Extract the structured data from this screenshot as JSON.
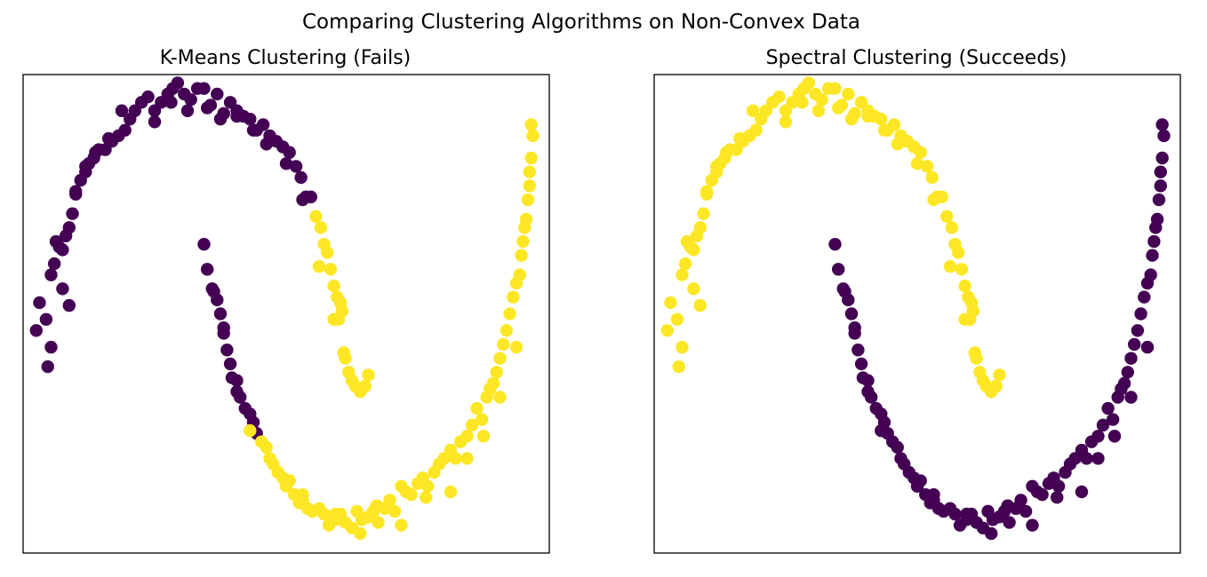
{
  "figure": {
    "suptitle": "Comparing Clustering Algorithms on Non-Convex Data"
  },
  "colors": {
    "cluster_0": "#440154",
    "cluster_1": "#fde725"
  },
  "chart_data": [
    {
      "type": "scatter",
      "title": "K-Means Clustering (Fails)",
      "xlabel": "",
      "ylabel": "",
      "xlim": [
        -1.1,
        2.1
      ],
      "ylim": [
        -0.62,
        1.1
      ],
      "grid": false,
      "ticks": false,
      "x_upper": [
        -1.02,
        -1.0,
        -0.96,
        -0.93,
        -0.95,
        -0.93,
        -0.91,
        -0.88,
        -0.86,
        -0.84,
        -0.82,
        -0.8,
        -0.78,
        -0.75,
        -0.72,
        -0.7,
        -0.67,
        -0.64,
        -0.6,
        -0.56,
        -0.52,
        -0.48,
        -0.45,
        -0.42,
        -0.38,
        -0.34,
        -0.3,
        -0.26,
        -0.22,
        -0.19,
        -0.16,
        -0.12,
        -0.08,
        -0.04,
        0.0,
        0.04,
        0.08,
        0.12,
        0.16,
        0.2,
        0.24,
        0.28,
        0.32,
        0.36,
        0.4,
        0.44,
        0.48,
        0.52,
        0.56,
        0.59,
        0.62,
        0.65,
        0.68,
        0.71,
        0.73,
        0.75,
        0.77,
        0.79,
        0.81,
        0.82,
        0.83,
        0.84,
        0.85,
        0.86,
        0.88,
        0.9,
        0.92,
        0.95,
        0.98,
        1.0,
        -0.9,
        -0.86,
        -0.82,
        -0.78,
        -0.72,
        -0.66,
        -0.58,
        -0.5,
        -0.3,
        -0.2,
        -0.1,
        0.02,
        0.1,
        0.2,
        0.3,
        0.38,
        0.5,
        0.6,
        0.7,
        0.79
      ],
      "y_upper": [
        0.18,
        0.28,
        0.22,
        0.12,
        0.05,
        0.38,
        0.42,
        0.48,
        0.47,
        0.52,
        0.55,
        0.6,
        0.67,
        0.72,
        0.75,
        0.78,
        0.8,
        0.83,
        0.83,
        0.86,
        0.88,
        0.9,
        0.94,
        0.97,
        1.0,
        1.02,
        0.97,
        1.0,
        1.03,
        1.05,
        1.07,
        1.03,
        1.01,
        1.05,
        1.05,
        0.99,
        1.03,
        0.96,
        1.0,
        0.97,
        0.95,
        0.94,
        0.9,
        0.92,
        0.88,
        0.86,
        0.84,
        0.82,
        0.77,
        0.73,
        0.66,
        0.66,
        0.59,
        0.55,
        0.49,
        0.46,
        0.4,
        0.34,
        0.3,
        0.22,
        0.28,
        0.25,
        0.1,
        0.08,
        0.03,
        0.0,
        -0.02,
        -0.04,
        -0.02,
        0.02,
        0.5,
        0.33,
        0.27,
        0.68,
        0.77,
        0.82,
        0.87,
        0.97,
        0.93,
        1.0,
        0.97,
        0.98,
        0.94,
        0.95,
        0.9,
        0.85,
        0.78,
        0.65,
        0.41,
        0.22
      ],
      "x_lower": [
        0.0,
        0.02,
        0.05,
        0.08,
        0.1,
        0.12,
        0.14,
        0.16,
        0.17,
        0.2,
        0.22,
        0.25,
        0.28,
        0.3,
        0.32,
        0.35,
        0.38,
        0.4,
        0.42,
        0.45,
        0.48,
        0.5,
        0.52,
        0.55,
        0.58,
        0.6,
        0.63,
        0.66,
        0.7,
        0.73,
        0.76,
        0.8,
        0.83,
        0.86,
        0.9,
        0.93,
        0.96,
        1.0,
        1.03,
        1.06,
        1.1,
        1.13,
        1.16,
        1.2,
        1.23,
        1.26,
        1.3,
        1.33,
        1.36,
        1.4,
        1.43,
        1.46,
        1.5,
        1.53,
        1.56,
        1.6,
        1.63,
        1.66,
        1.69,
        1.72,
        1.74,
        1.76,
        1.78,
        1.8,
        1.82,
        1.84,
        1.86,
        1.88,
        1.9,
        1.92,
        1.93,
        1.94,
        1.95,
        1.96,
        1.97,
        1.98,
        1.98,
        1.99,
        2.0,
        1.99,
        0.06,
        0.12,
        0.2,
        0.28,
        0.6,
        0.8,
        0.95,
        1.05,
        1.2,
        1.35,
        1.5,
        1.6,
        1.7,
        1.8,
        1.9
      ],
      "y_lower": [
        0.49,
        0.4,
        0.33,
        0.29,
        0.24,
        0.17,
        0.11,
        0.06,
        0.01,
        0.0,
        -0.06,
        -0.1,
        -0.12,
        -0.15,
        -0.19,
        -0.22,
        -0.24,
        -0.28,
        -0.3,
        -0.33,
        -0.35,
        -0.38,
        -0.36,
        -0.41,
        -0.44,
        -0.43,
        -0.46,
        -0.47,
        -0.46,
        -0.48,
        -0.52,
        -0.5,
        -0.48,
        -0.51,
        -0.53,
        -0.47,
        -0.5,
        -0.49,
        -0.47,
        -0.51,
        -0.46,
        -0.43,
        -0.47,
        -0.38,
        -0.4,
        -0.41,
        -0.37,
        -0.35,
        -0.38,
        -0.33,
        -0.3,
        -0.28,
        -0.25,
        -0.28,
        -0.22,
        -0.2,
        -0.16,
        -0.1,
        -0.14,
        -0.06,
        -0.03,
        -0.01,
        0.03,
        0.08,
        0.13,
        0.18,
        0.24,
        0.3,
        0.35,
        0.38,
        0.45,
        0.5,
        0.55,
        0.58,
        0.65,
        0.7,
        0.75,
        0.8,
        0.88,
        0.92,
        0.32,
        0.19,
        -0.04,
        -0.18,
        -0.41,
        -0.48,
        -0.55,
        -0.45,
        -0.52,
        -0.42,
        -0.4,
        -0.28,
        -0.2,
        -0.06,
        0.12
      ],
      "series": [
        {
          "name": "",
          "x": [
            -1.02,
            -1.0,
            -0.96,
            -0.93,
            -0.95,
            -0.93,
            -0.91,
            -0.88,
            -0.86,
            -0.84,
            -0.82,
            -0.8,
            -0.78,
            -0.75,
            -0.72,
            -0.7,
            -0.67,
            -0.64,
            -0.6,
            -0.56,
            -0.52,
            -0.48,
            -0.45,
            -0.42,
            -0.38,
            -0.34,
            -0.3,
            -0.26,
            -0.22,
            -0.19,
            -0.16,
            -0.12,
            -0.08,
            -0.04,
            0.0,
            0.04,
            0.08,
            0.12,
            0.16,
            0.2,
            0.24,
            0.28,
            0.32,
            0.36,
            0.4,
            0.44,
            0.48,
            0.52,
            0.56,
            0.59,
            0.62,
            0.65,
            -0.9,
            -0.86,
            -0.82,
            -0.78,
            -0.72,
            -0.66,
            -0.58,
            -0.5,
            -0.3,
            -0.2,
            -0.1,
            0.02,
            0.1,
            0.2,
            0.3,
            0.38,
            0.5,
            0.6,
            0.0,
            0.02,
            0.05,
            0.08,
            0.1,
            0.12,
            0.14,
            0.16,
            0.17,
            0.2,
            0.22,
            0.25,
            0.28,
            0.3,
            0.32,
            0.06,
            0.12,
            0.2
          ],
          "y": [
            0.18,
            0.28,
            0.22,
            0.12,
            0.05,
            0.38,
            0.42,
            0.48,
            0.47,
            0.52,
            0.55,
            0.6,
            0.67,
            0.72,
            0.75,
            0.78,
            0.8,
            0.83,
            0.83,
            0.86,
            0.88,
            0.9,
            0.94,
            0.97,
            1.0,
            1.02,
            0.97,
            1.0,
            1.03,
            1.05,
            1.07,
            1.03,
            1.01,
            1.05,
            1.05,
            0.99,
            1.03,
            0.96,
            1.0,
            0.97,
            0.95,
            0.94,
            0.9,
            0.92,
            0.88,
            0.86,
            0.84,
            0.82,
            0.77,
            0.73,
            0.66,
            0.66,
            0.5,
            0.33,
            0.27,
            0.68,
            0.77,
            0.82,
            0.87,
            0.97,
            0.93,
            1.0,
            0.97,
            0.98,
            0.94,
            0.95,
            0.9,
            0.85,
            0.78,
            0.65,
            0.49,
            0.4,
            0.33,
            0.29,
            0.24,
            0.17,
            0.11,
            0.06,
            0.01,
            0.0,
            -0.06,
            -0.1,
            -0.12,
            -0.15,
            -0.19,
            0.32,
            0.19,
            -0.04
          ]
        },
        {
          "name": "",
          "x": [
            0.68,
            0.71,
            0.73,
            0.75,
            0.77,
            0.79,
            0.81,
            0.82,
            0.83,
            0.84,
            0.85,
            0.86,
            0.88,
            0.9,
            0.92,
            0.95,
            0.98,
            1.0,
            0.7,
            0.79,
            0.35,
            0.38,
            0.4,
            0.42,
            0.45,
            0.48,
            0.5,
            0.52,
            0.55,
            0.58,
            0.6,
            0.63,
            0.66,
            0.7,
            0.73,
            0.76,
            0.8,
            0.83,
            0.86,
            0.9,
            0.93,
            0.96,
            1.0,
            1.03,
            1.06,
            1.1,
            1.13,
            1.16,
            1.2,
            1.23,
            1.26,
            1.3,
            1.33,
            1.36,
            1.4,
            1.43,
            1.46,
            1.5,
            1.53,
            1.56,
            1.6,
            1.63,
            1.66,
            1.69,
            1.72,
            1.74,
            1.76,
            1.78,
            1.8,
            1.82,
            1.84,
            1.86,
            1.88,
            1.9,
            1.92,
            1.93,
            1.94,
            1.95,
            1.96,
            1.97,
            1.98,
            1.98,
            1.99,
            2.0,
            1.99,
            0.28,
            0.6,
            0.8,
            0.95,
            1.05,
            1.2,
            1.35,
            1.5,
            1.6,
            1.7,
            1.8,
            1.9
          ],
          "y": [
            0.59,
            0.55,
            0.49,
            0.46,
            0.4,
            0.34,
            0.3,
            0.22,
            0.28,
            0.25,
            0.1,
            0.08,
            0.03,
            0.0,
            -0.02,
            -0.04,
            -0.02,
            0.02,
            0.41,
            0.22,
            -0.22,
            -0.24,
            -0.28,
            -0.3,
            -0.33,
            -0.35,
            -0.38,
            -0.36,
            -0.41,
            -0.44,
            -0.43,
            -0.46,
            -0.47,
            -0.46,
            -0.48,
            -0.52,
            -0.5,
            -0.48,
            -0.51,
            -0.53,
            -0.47,
            -0.5,
            -0.49,
            -0.47,
            -0.51,
            -0.46,
            -0.43,
            -0.47,
            -0.38,
            -0.4,
            -0.41,
            -0.37,
            -0.35,
            -0.38,
            -0.33,
            -0.3,
            -0.28,
            -0.25,
            -0.28,
            -0.22,
            -0.2,
            -0.16,
            -0.1,
            -0.14,
            -0.06,
            -0.03,
            -0.01,
            0.03,
            0.08,
            0.13,
            0.18,
            0.24,
            0.3,
            0.35,
            0.38,
            0.45,
            0.5,
            0.55,
            0.58,
            0.65,
            0.7,
            0.75,
            0.8,
            0.88,
            0.92,
            -0.18,
            -0.41,
            -0.48,
            -0.55,
            -0.45,
            -0.52,
            -0.42,
            -0.4,
            -0.28,
            -0.2,
            -0.06,
            0.12
          ]
        }
      ]
    },
    {
      "type": "scatter",
      "title": "Spectral Clustering (Succeeds)",
      "xlabel": "",
      "ylabel": "",
      "xlim": [
        -1.1,
        2.1
      ],
      "ylim": [
        -0.62,
        1.1
      ],
      "grid": false,
      "ticks": false,
      "series": [
        {
          "name": "",
          "x": [
            0.0,
            0.02,
            0.05,
            0.08,
            0.1,
            0.12,
            0.14,
            0.16,
            0.17,
            0.2,
            0.22,
            0.25,
            0.28,
            0.3,
            0.32,
            0.35,
            0.38,
            0.4,
            0.42,
            0.45,
            0.48,
            0.5,
            0.52,
            0.55,
            0.58,
            0.6,
            0.63,
            0.66,
            0.7,
            0.73,
            0.76,
            0.8,
            0.83,
            0.86,
            0.9,
            0.93,
            0.96,
            1.0,
            1.03,
            1.06,
            1.1,
            1.13,
            1.16,
            1.2,
            1.23,
            1.26,
            1.3,
            1.33,
            1.36,
            1.4,
            1.43,
            1.46,
            1.5,
            1.53,
            1.56,
            1.6,
            1.63,
            1.66,
            1.69,
            1.72,
            1.74,
            1.76,
            1.78,
            1.8,
            1.82,
            1.84,
            1.86,
            1.88,
            1.9,
            1.92,
            1.93,
            1.94,
            1.95,
            1.96,
            1.97,
            1.98,
            1.98,
            1.99,
            2.0,
            1.99,
            0.06,
            0.12,
            0.2,
            0.28,
            0.6,
            0.8,
            0.95,
            1.05,
            1.2,
            1.35,
            1.5,
            1.6,
            1.7,
            1.8,
            1.9
          ],
          "y": [
            0.49,
            0.4,
            0.33,
            0.29,
            0.24,
            0.17,
            0.11,
            0.06,
            0.01,
            0.0,
            -0.06,
            -0.1,
            -0.12,
            -0.15,
            -0.19,
            -0.22,
            -0.24,
            -0.28,
            -0.3,
            -0.33,
            -0.35,
            -0.38,
            -0.36,
            -0.41,
            -0.44,
            -0.43,
            -0.46,
            -0.47,
            -0.46,
            -0.48,
            -0.52,
            -0.5,
            -0.48,
            -0.51,
            -0.53,
            -0.47,
            -0.5,
            -0.49,
            -0.47,
            -0.51,
            -0.46,
            -0.43,
            -0.47,
            -0.38,
            -0.4,
            -0.41,
            -0.37,
            -0.35,
            -0.38,
            -0.33,
            -0.3,
            -0.28,
            -0.25,
            -0.28,
            -0.22,
            -0.2,
            -0.16,
            -0.1,
            -0.14,
            -0.06,
            -0.03,
            -0.01,
            0.03,
            0.08,
            0.13,
            0.18,
            0.24,
            0.3,
            0.35,
            0.38,
            0.45,
            0.5,
            0.55,
            0.58,
            0.65,
            0.7,
            0.75,
            0.8,
            0.88,
            0.92,
            0.32,
            0.19,
            -0.04,
            -0.18,
            -0.41,
            -0.48,
            -0.55,
            -0.45,
            -0.52,
            -0.42,
            -0.4,
            -0.28,
            -0.2,
            -0.06,
            0.12
          ]
        },
        {
          "name": "",
          "x": [
            -1.02,
            -1.0,
            -0.96,
            -0.93,
            -0.95,
            -0.93,
            -0.91,
            -0.88,
            -0.86,
            -0.84,
            -0.82,
            -0.8,
            -0.78,
            -0.75,
            -0.72,
            -0.7,
            -0.67,
            -0.64,
            -0.6,
            -0.56,
            -0.52,
            -0.48,
            -0.45,
            -0.42,
            -0.38,
            -0.34,
            -0.3,
            -0.26,
            -0.22,
            -0.19,
            -0.16,
            -0.12,
            -0.08,
            -0.04,
            0.0,
            0.04,
            0.08,
            0.12,
            0.16,
            0.2,
            0.24,
            0.28,
            0.32,
            0.36,
            0.4,
            0.44,
            0.48,
            0.52,
            0.56,
            0.59,
            0.62,
            0.65,
            0.68,
            0.71,
            0.73,
            0.75,
            0.77,
            0.79,
            0.81,
            0.82,
            0.83,
            0.84,
            0.85,
            0.86,
            0.88,
            0.9,
            0.92,
            0.95,
            0.98,
            1.0,
            -0.9,
            -0.86,
            -0.82,
            -0.78,
            -0.72,
            -0.66,
            -0.58,
            -0.5,
            -0.3,
            -0.2,
            -0.1,
            0.02,
            0.1,
            0.2,
            0.3,
            0.38,
            0.5,
            0.6,
            0.7,
            0.79
          ],
          "y": [
            0.18,
            0.28,
            0.22,
            0.12,
            0.05,
            0.38,
            0.42,
            0.48,
            0.47,
            0.52,
            0.55,
            0.6,
            0.67,
            0.72,
            0.75,
            0.78,
            0.8,
            0.83,
            0.83,
            0.86,
            0.88,
            0.9,
            0.94,
            0.97,
            1.0,
            1.02,
            0.97,
            1.0,
            1.03,
            1.05,
            1.07,
            1.03,
            1.01,
            1.05,
            1.05,
            0.99,
            1.03,
            0.96,
            1.0,
            0.97,
            0.95,
            0.94,
            0.9,
            0.92,
            0.88,
            0.86,
            0.84,
            0.82,
            0.77,
            0.73,
            0.66,
            0.66,
            0.59,
            0.55,
            0.49,
            0.46,
            0.4,
            0.34,
            0.3,
            0.22,
            0.28,
            0.25,
            0.1,
            0.08,
            0.03,
            0.0,
            -0.02,
            -0.04,
            -0.02,
            0.02,
            0.5,
            0.33,
            0.27,
            0.68,
            0.77,
            0.82,
            0.87,
            0.97,
            0.93,
            1.0,
            0.97,
            0.98,
            0.94,
            0.95,
            0.9,
            0.85,
            0.78,
            0.65,
            0.41,
            0.22
          ]
        }
      ]
    }
  ]
}
